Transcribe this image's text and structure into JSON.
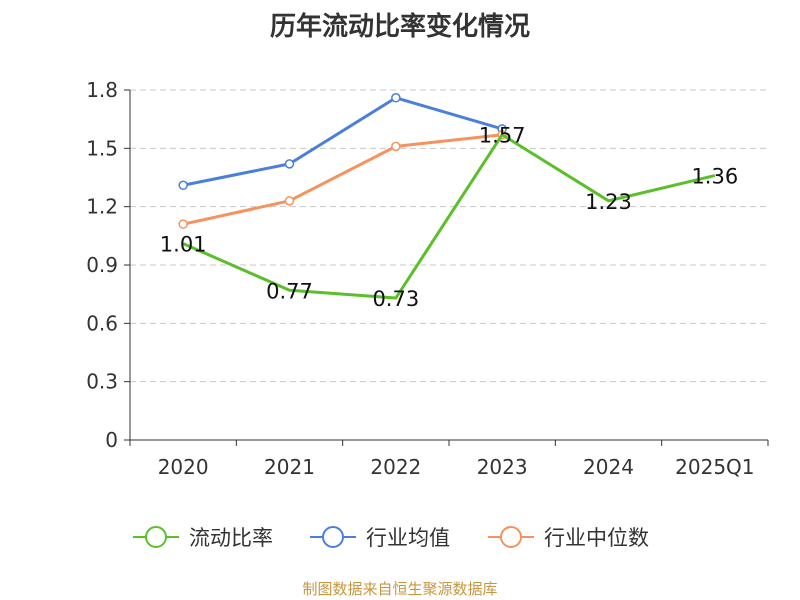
{
  "title": "历年流动比率变化情况",
  "source": "制图数据来自恒生聚源数据库",
  "chart_data": {
    "type": "line",
    "categories": [
      "2020",
      "2021",
      "2022",
      "2023",
      "2024",
      "2025Q1"
    ],
    "y_ticks": [
      "0",
      "0.3",
      "0.6",
      "0.9",
      "1.2",
      "1.5",
      "1.8"
    ],
    "ylim": [
      0,
      1.8
    ],
    "grid": true,
    "legend_position": "bottom",
    "series": [
      {
        "name": "流动比率",
        "color": "#5bbf2a",
        "values": [
          1.01,
          0.77,
          0.73,
          1.57,
          1.23,
          1.36
        ],
        "labels": [
          "1.01",
          "0.77",
          "0.73",
          "1.57",
          "1.23",
          "1.36"
        ]
      },
      {
        "name": "行业均值",
        "color": "#4a7fdc",
        "values": [
          1.31,
          1.42,
          1.76,
          1.6,
          null,
          null
        ]
      },
      {
        "name": "行业中位数",
        "color": "#f5925e",
        "values": [
          1.11,
          1.23,
          1.51,
          1.57,
          null,
          null
        ]
      }
    ]
  }
}
